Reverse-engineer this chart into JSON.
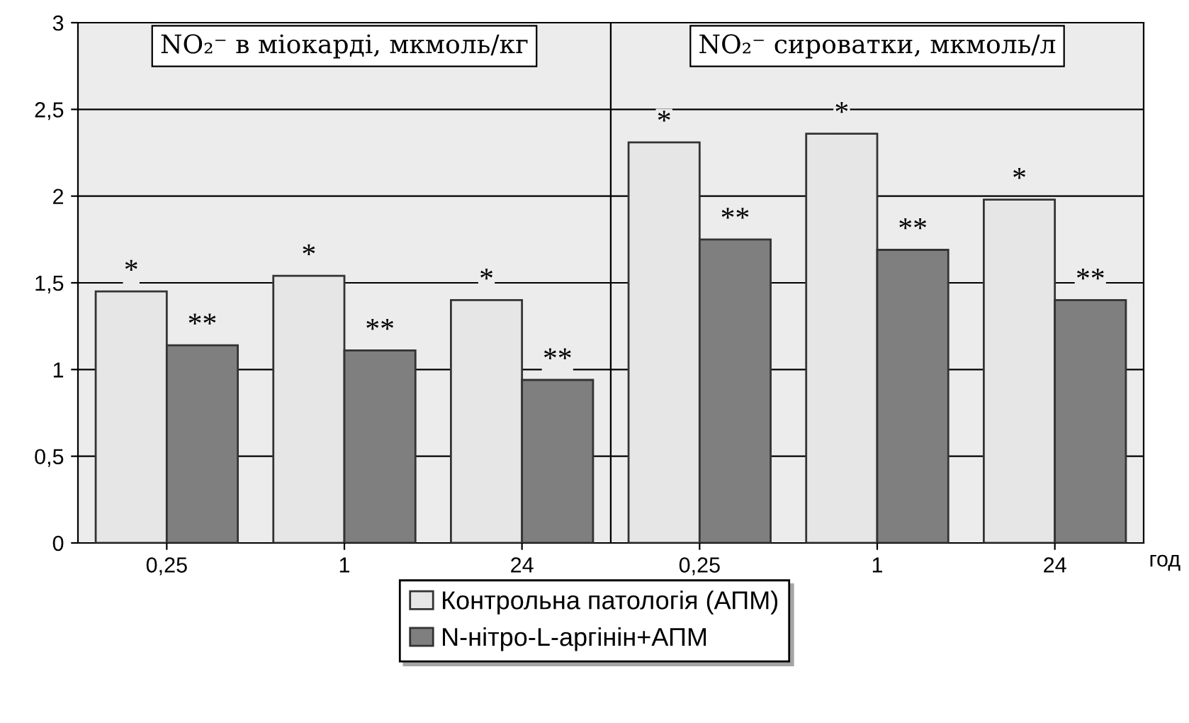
{
  "chart_data": [
    {
      "type": "bar",
      "title": "NO₂⁻ в міокарді, мкмоль/кг",
      "categories": [
        "0,25",
        "1",
        "24"
      ],
      "series": [
        {
          "name": "Контрольна патологія (АПМ)",
          "color": "#e6e6e6",
          "values": [
            1.45,
            1.54,
            1.4
          ],
          "value_labels": [
            "*",
            "*",
            "*"
          ]
        },
        {
          "name": "N-нітро-L-аргінін+АПМ",
          "color": "#7f7f7f",
          "values": [
            1.14,
            1.11,
            0.94
          ],
          "value_labels": [
            "**",
            "**",
            "**"
          ]
        }
      ],
      "ylim": [
        0,
        3
      ],
      "yticks": [
        0,
        {
          "value": 0.5,
          "label": "0,5"
        },
        1,
        {
          "value": 1.5,
          "label": "1,5"
        },
        2,
        {
          "value": 2.5,
          "label": "2,5"
        },
        3
      ],
      "grid": "y",
      "legend": "bottom"
    },
    {
      "type": "bar",
      "title": "NO₂⁻ сироватки, мкмоль/л",
      "xlabel": "год",
      "categories": [
        "0,25",
        "1",
        "24"
      ],
      "series": [
        {
          "color": "#e6e6e6",
          "values": [
            2.31,
            2.36,
            1.98
          ],
          "value_labels": [
            "*",
            "*",
            "*"
          ]
        },
        {
          "color": "#7f7f7f",
          "values": [
            1.75,
            1.69,
            1.4
          ],
          "value_labels": [
            "**",
            "**",
            "**"
          ]
        }
      ],
      "ylim": [
        0,
        3
      ],
      "grid": "y",
      "tick_labels": "x"
    }
  ]
}
